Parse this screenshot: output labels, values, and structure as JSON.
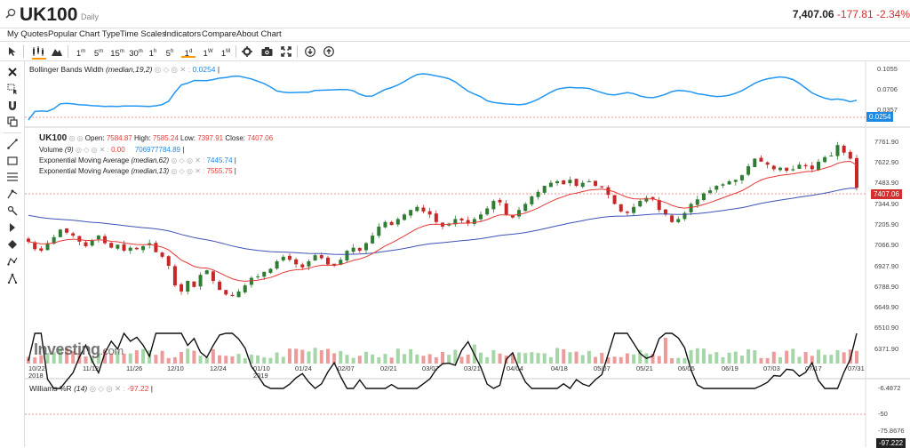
{
  "header": {
    "symbol": "UK100",
    "timeframe": "Daily",
    "last": "7,407.06",
    "change": "-177.81",
    "change_pct": "-2.34%"
  },
  "menu": [
    "My Quotes",
    "Popular",
    "Chart Type",
    "Time Scales",
    "Indicators",
    "Compare",
    "About Chart"
  ],
  "toolbar": {
    "intervals": [
      {
        "base": "1",
        "unit": "m"
      },
      {
        "base": "5",
        "unit": "m"
      },
      {
        "base": "15",
        "unit": "m"
      },
      {
        "base": "30",
        "unit": "m"
      },
      {
        "base": "1",
        "unit": "h"
      },
      {
        "base": "5",
        "unit": "h"
      },
      {
        "base": "1",
        "unit": "d"
      },
      {
        "base": "1",
        "unit": "W"
      },
      {
        "base": "1",
        "unit": "M"
      }
    ],
    "selected_interval": "1d"
  },
  "bbw": {
    "label": "Bollinger Bands Width",
    "params": "(median,19,2)",
    "value": "0.0254",
    "axis": [
      "0.1055",
      "0.0706",
      "0.0357",
      "0.0254"
    ]
  },
  "main": {
    "symbol": "UK100",
    "open_label": "Open:",
    "open": "7584.87",
    "high_label": "High:",
    "high": "7585.24",
    "low_label": "Low:",
    "low": "7397.91",
    "close_label": "Close:",
    "close": "7407.06",
    "volume_label": "Volume",
    "volume_param": "(9)",
    "volume_val": "0.00",
    "volume_ma": "706977784.89",
    "ema62_label": "Exponential Moving Average",
    "ema62_param": "(median,62)",
    "ema62_val": "7445.74",
    "ema13_label": "Exponential Moving Average",
    "ema13_param": "(median,13)",
    "ema13_val": "7555.75",
    "last_tag": "7407.06",
    "axis": [
      "7761.90",
      "7622.90",
      "7483.90",
      "7344.90",
      "7205.90",
      "7066.90",
      "6927.90",
      "6788.90",
      "6649.90",
      "6510.90",
      "6371.90"
    ],
    "watermark": "Investing",
    "watermark_suffix": ".com"
  },
  "xaxis": {
    "labels": [
      "10/22",
      "11/12",
      "11/26",
      "12/10",
      "12/24",
      "01/10",
      "01/24",
      "02/07",
      "02/21",
      "03/07",
      "03/21",
      "04/04",
      "04/18",
      "05/07",
      "05/21",
      "06/05",
      "06/19",
      "07/03",
      "07/17",
      "07/31"
    ],
    "year_labels": [
      "2018",
      "2019"
    ]
  },
  "williams": {
    "label": "Williams %R",
    "param": "(14)",
    "value": "-97.22",
    "axis": [
      "-6.4872",
      "-50",
      "-75.8676",
      "-97.222"
    ]
  },
  "colors": {
    "accent": "#1e88e5",
    "up": "#2e7d32",
    "down": "#c62828",
    "ema_fast": "#e53935",
    "ema_slow": "#3f51b5",
    "bbw": "#2196f3"
  },
  "chart_data": {
    "type": "candlestick",
    "title": "UK100",
    "close_series": [
      7050,
      7000,
      6990,
      7040,
      7080,
      7130,
      7110,
      7090,
      7050,
      7020,
      7060,
      7090,
      7040,
      7010,
      7030,
      6990,
      7010,
      7000,
      7020,
      7040,
      6980,
      6950,
      6890,
      6760,
      6720,
      6790,
      6750,
      6830,
      6860,
      6790,
      6730,
      6700,
      6690,
      6720,
      6760,
      6810,
      6820,
      6850,
      6870,
      6920,
      6950,
      6930,
      6900,
      6880,
      6920,
      6960,
      6940,
      6900,
      6890,
      6930,
      6990,
      7010,
      6990,
      7040,
      7090,
      7150,
      7180,
      7160,
      7200,
      7230,
      7260,
      7280,
      7250,
      7230,
      7180,
      7150,
      7170,
      7200,
      7190,
      7170,
      7200,
      7230,
      7270,
      7320,
      7310,
      7230,
      7210,
      7260,
      7300,
      7350,
      7380,
      7420,
      7440,
      7450,
      7430,
      7460,
      7420,
      7440,
      7450,
      7420,
      7410,
      7360,
      7300,
      7250,
      7240,
      7280,
      7320,
      7340,
      7330,
      7260,
      7230,
      7180,
      7200,
      7240,
      7300,
      7330,
      7370,
      7390,
      7420,
      7430,
      7450,
      7460,
      7490,
      7550,
      7600,
      7580,
      7560,
      7530,
      7540,
      7520,
      7530,
      7560,
      7550,
      7530,
      7580,
      7610,
      7620,
      7690,
      7640,
      7600,
      7407
    ],
    "ylim": [
      6371.9,
      7761.9
    ]
  }
}
